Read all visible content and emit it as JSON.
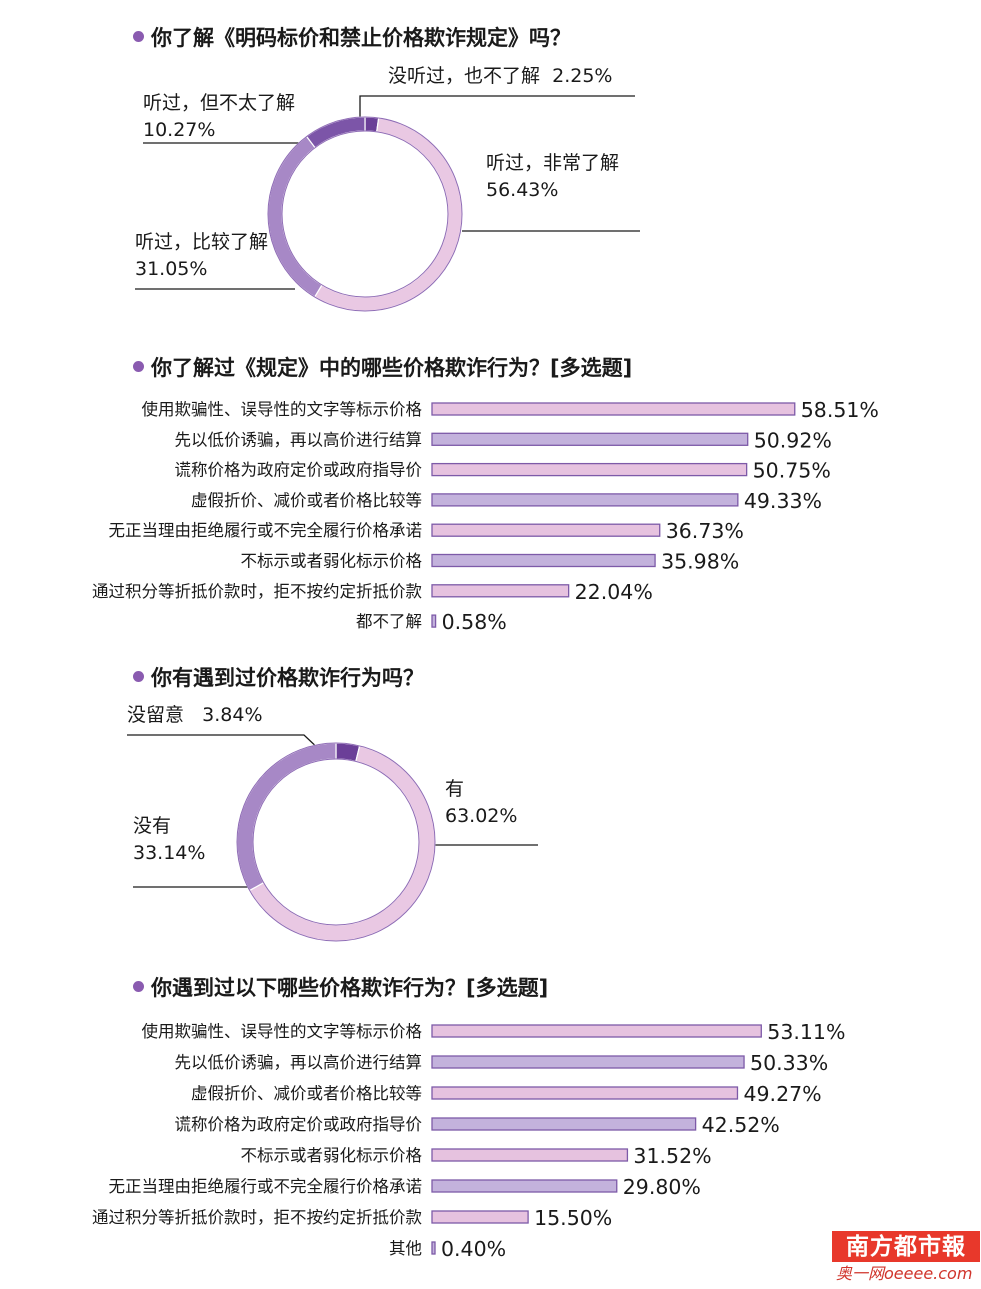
{
  "chart_data": [
    {
      "type": "pie",
      "title": "你了解《明码标价和禁止价格欺诈规定》吗？",
      "slices": [
        {
          "label": "没听过，也不了解",
          "value": 2.25,
          "value_text": "2.25%"
        },
        {
          "label": "听过，非常了解",
          "value": 56.43,
          "value_text": "56.43%"
        },
        {
          "label": "听过，比较了解",
          "value": 31.05,
          "value_text": "31.05%"
        },
        {
          "label": "听过，但不太了解",
          "value": 10.27,
          "value_text": "10.27%"
        }
      ],
      "colors": [
        "#6b3f98",
        "#e9c8e3",
        "#a788c6",
        "#7c55a8"
      ]
    },
    {
      "type": "bar",
      "orientation": "horizontal",
      "title": "你了解过《规定》中的哪些价格欺诈行为？[多选题]",
      "categories": [
        "使用欺骗性、误导性的文字等标示价格",
        "先以低价诱骗，再以高价进行结算",
        "谎称价格为政府定价或政府指导价",
        "虚假折价、减价或者价格比较等",
        "无正当理由拒绝履行或不完全履行价格承诺",
        "不标示或者弱化标示价格",
        "通过积分等折抵价款时，拒不按约定折抵价款",
        "都不了解"
      ],
      "values": [
        58.51,
        50.92,
        50.75,
        49.33,
        36.73,
        35.98,
        22.04,
        0.58
      ],
      "value_labels": [
        "58.51%",
        "50.92%",
        "50.75%",
        "49.33%",
        "36.73%",
        "35.98%",
        "22.04%",
        "0.58%"
      ],
      "colors": [
        "#e6c2df",
        "#c3b2dc",
        "#e6c2df",
        "#c3b2dc",
        "#e6c2df",
        "#c3b2dc",
        "#e6c2df",
        "#c3b2dc"
      ]
    },
    {
      "type": "pie",
      "title": "你有遇到过价格欺诈行为吗？",
      "slices": [
        {
          "label": "没留意",
          "value": 3.84,
          "value_text": "3.84%"
        },
        {
          "label": "有",
          "value": 63.02,
          "value_text": "63.02%"
        },
        {
          "label": "没有",
          "value": 33.14,
          "value_text": "33.14%"
        }
      ],
      "colors": [
        "#6b3f98",
        "#e9c8e3",
        "#a788c6"
      ]
    },
    {
      "type": "bar",
      "orientation": "horizontal",
      "title": "你遇到过以下哪些价格欺诈行为？[多选题]",
      "categories": [
        "使用欺骗性、误导性的文字等标示价格",
        "先以低价诱骗，再以高价进行结算",
        "虚假折价、减价或者价格比较等",
        "谎称价格为政府定价或政府指导价",
        "不标示或者弱化标示价格",
        "无正当理由拒绝履行或不完全履行价格承诺",
        "通过积分等折抵价款时，拒不按约定折抵价款",
        "其他"
      ],
      "values": [
        53.11,
        50.33,
        49.27,
        42.52,
        31.52,
        29.8,
        15.5,
        0.4
      ],
      "value_labels": [
        "53.11%",
        "50.33%",
        "49.27%",
        "42.52%",
        "31.52%",
        "29.80%",
        "15.50%",
        "0.40%"
      ],
      "colors": [
        "#e6c2df",
        "#c3b2dc",
        "#e6c2df",
        "#c3b2dc",
        "#e6c2df",
        "#c3b2dc",
        "#e6c2df",
        "#c3b2dc"
      ]
    }
  ],
  "watermark": {
    "logo_text": "南方都市報",
    "site_text": "奥一网oeeee.com"
  }
}
